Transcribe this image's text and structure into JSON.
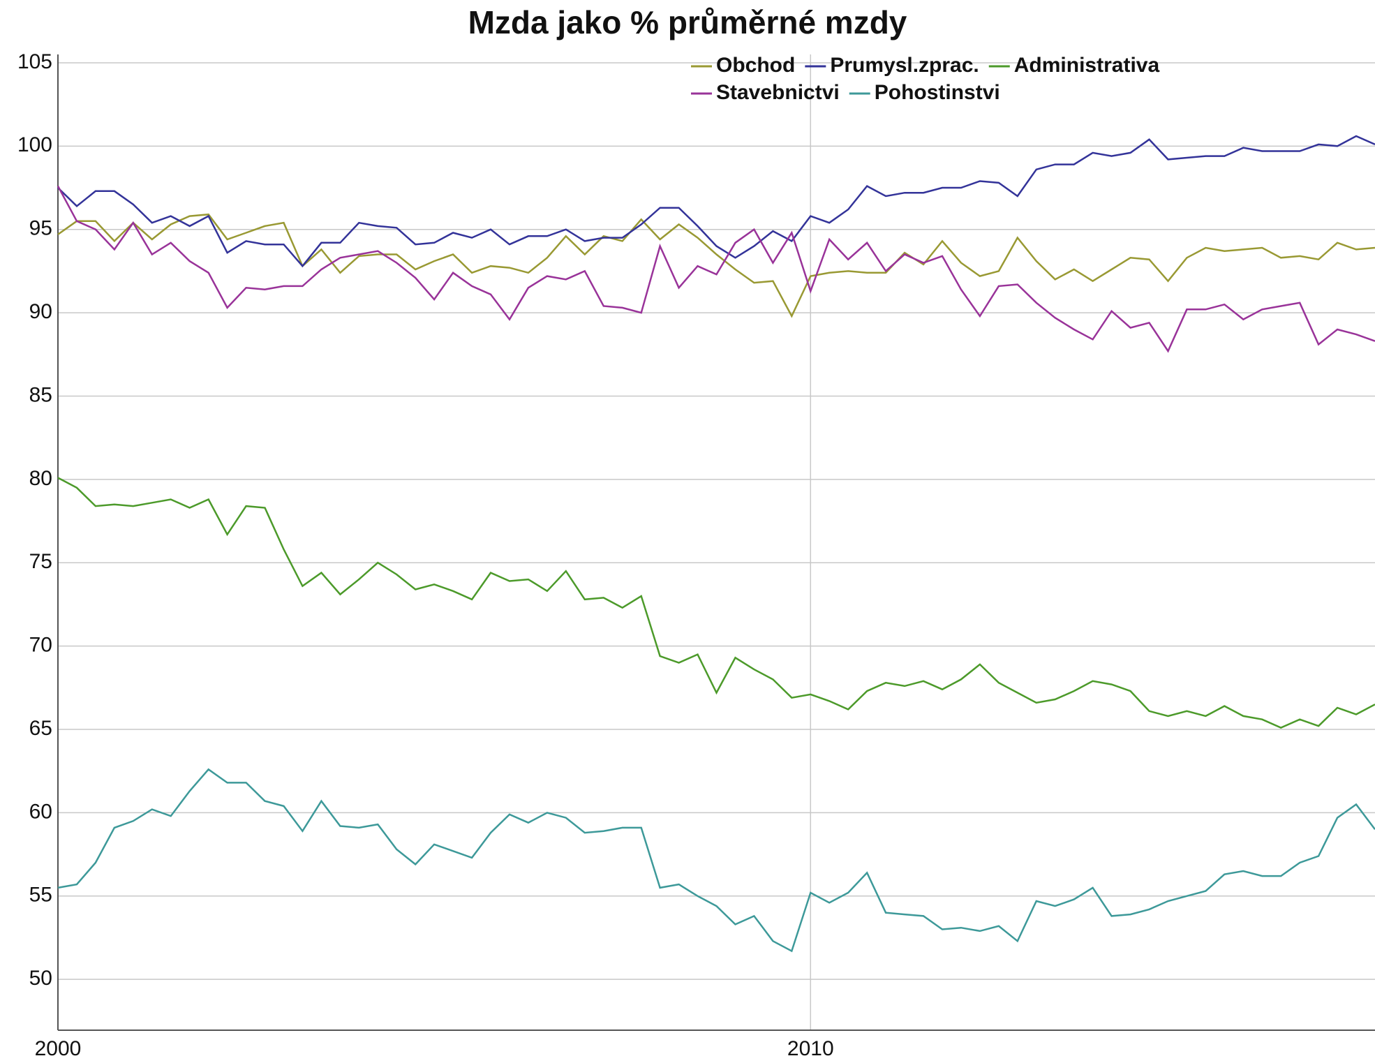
{
  "chart_data": {
    "type": "line",
    "title": "Mzda jako % průměrné mzdy",
    "x": [
      2000,
      2000.25,
      2000.5,
      2000.75,
      2001,
      2001.25,
      2001.5,
      2001.75,
      2002,
      2002.25,
      2002.5,
      2002.75,
      2003,
      2003.25,
      2003.5,
      2003.75,
      2004,
      2004.25,
      2004.5,
      2004.75,
      2005,
      2005.25,
      2005.5,
      2005.75,
      2006,
      2006.25,
      2006.5,
      2006.75,
      2007,
      2007.25,
      2007.5,
      2007.75,
      2008,
      2008.25,
      2008.5,
      2008.75,
      2009,
      2009.25,
      2009.5,
      2009.75,
      2010,
      2010.25,
      2010.5,
      2010.75,
      2011,
      2011.25,
      2011.5,
      2011.75,
      2012,
      2012.25,
      2012.5,
      2012.75,
      2013,
      2013.25,
      2013.5,
      2013.75,
      2014,
      2014.25,
      2014.5,
      2014.75,
      2015,
      2015.25,
      2015.5,
      2015.75,
      2016,
      2016.25,
      2016.5,
      2016.75,
      2017,
      2017.25,
      2017.5
    ],
    "series": [
      {
        "name": "Obchod",
        "color": "#999933",
        "values": [
          94.7,
          95.5,
          95.5,
          94.3,
          95.4,
          94.4,
          95.3,
          95.8,
          95.9,
          94.4,
          94.8,
          95.2,
          95.4,
          92.8,
          93.8,
          92.4,
          93.4,
          93.5,
          93.5,
          92.6,
          93.1,
          93.5,
          92.4,
          92.8,
          92.7,
          92.4,
          93.3,
          94.6,
          93.5,
          94.6,
          94.3,
          95.6,
          94.4,
          95.3,
          94.5,
          93.5,
          92.6,
          91.8,
          91.9,
          89.8,
          92.2,
          92.4,
          92.5,
          92.4,
          92.4,
          93.6,
          92.9,
          94.3,
          93.0,
          92.2,
          92.5,
          94.5,
          93.1,
          92.0,
          92.6,
          91.9,
          92.6,
          93.3,
          93.2,
          91.9,
          93.3,
          93.9,
          93.7,
          93.8,
          93.9,
          93.3,
          93.4,
          93.2,
          94.2,
          93.8,
          93.9
        ]
      },
      {
        "name": "Prumysl.zprac.",
        "color": "#333399",
        "values": [
          97.5,
          96.4,
          97.3,
          97.3,
          96.5,
          95.4,
          95.8,
          95.2,
          95.8,
          93.6,
          94.3,
          94.1,
          94.1,
          92.8,
          94.2,
          94.2,
          95.4,
          95.2,
          95.1,
          94.1,
          94.2,
          94.8,
          94.5,
          95.0,
          94.1,
          94.6,
          94.6,
          95.0,
          94.3,
          94.5,
          94.5,
          95.3,
          96.3,
          96.3,
          95.2,
          94.0,
          93.3,
          94.0,
          94.9,
          94.3,
          95.8,
          95.4,
          96.2,
          97.6,
          97.0,
          97.2,
          97.2,
          97.5,
          97.5,
          97.9,
          97.8,
          97.0,
          98.6,
          98.9,
          98.9,
          99.6,
          99.4,
          99.6,
          100.4,
          99.2,
          99.3,
          99.4,
          99.4,
          99.9,
          99.7,
          99.7,
          99.7,
          100.1,
          100.0,
          100.6,
          100.1
        ]
      },
      {
        "name": "Administrativa",
        "color": "#4c9a2a",
        "values": [
          80.1,
          79.5,
          78.4,
          78.5,
          78.4,
          78.6,
          78.8,
          78.3,
          78.8,
          76.7,
          78.4,
          78.3,
          75.8,
          73.6,
          74.4,
          73.1,
          74.0,
          75.0,
          74.3,
          73.4,
          73.7,
          73.3,
          72.8,
          74.4,
          73.9,
          74.0,
          73.3,
          74.5,
          72.8,
          72.9,
          72.3,
          73.0,
          69.4,
          69.0,
          69.5,
          67.2,
          69.3,
          68.6,
          68.0,
          66.9,
          67.1,
          66.7,
          66.2,
          67.3,
          67.8,
          67.6,
          67.9,
          67.4,
          68.0,
          68.9,
          67.8,
          67.2,
          66.6,
          66.8,
          67.3,
          67.9,
          67.7,
          67.3,
          66.1,
          65.8,
          66.1,
          65.8,
          66.4,
          65.8,
          65.6,
          65.1,
          65.6,
          65.2,
          66.3,
          65.9,
          66.5
        ]
      },
      {
        "name": "Stavebnictvi",
        "color": "#993399",
        "values": [
          97.6,
          95.5,
          95.0,
          93.8,
          95.4,
          93.5,
          94.2,
          93.1,
          92.4,
          90.3,
          91.5,
          91.4,
          91.6,
          91.6,
          92.6,
          93.3,
          93.5,
          93.7,
          93.0,
          92.1,
          90.8,
          92.4,
          91.6,
          91.1,
          89.6,
          91.5,
          92.2,
          92.0,
          92.5,
          90.4,
          90.3,
          90.0,
          94.0,
          91.5,
          92.8,
          92.3,
          94.2,
          95.0,
          93.0,
          94.8,
          91.3,
          94.4,
          93.2,
          94.2,
          92.5,
          93.5,
          93.0,
          93.4,
          91.4,
          89.8,
          91.6,
          91.7,
          90.6,
          89.7,
          89.0,
          88.4,
          90.1,
          89.1,
          89.4,
          87.7,
          90.2,
          90.2,
          90.5,
          89.6,
          90.2,
          90.4,
          90.6,
          88.1,
          89.0,
          88.7,
          88.3
        ]
      },
      {
        "name": "Pohostinstvi",
        "color": "#3d9999",
        "values": [
          55.5,
          55.7,
          57.0,
          59.1,
          59.5,
          60.2,
          59.8,
          61.3,
          62.6,
          61.8,
          61.8,
          60.7,
          60.4,
          58.9,
          60.7,
          59.2,
          59.1,
          59.3,
          57.8,
          56.9,
          58.1,
          57.7,
          57.3,
          58.8,
          59.9,
          59.4,
          60.0,
          59.7,
          58.8,
          58.9,
          59.1,
          59.1,
          55.5,
          55.7,
          55.0,
          54.4,
          53.3,
          53.8,
          52.3,
          51.7,
          55.2,
          54.6,
          55.2,
          56.4,
          54.0,
          53.9,
          53.8,
          53.0,
          53.1,
          52.9,
          53.2,
          52.3,
          54.7,
          54.4,
          54.8,
          55.5,
          53.8,
          53.9,
          54.2,
          54.7,
          55.0,
          55.3,
          56.3,
          56.5,
          56.2,
          56.2,
          57.0,
          57.4,
          59.7,
          60.5,
          59.0
        ]
      }
    ],
    "xlim": [
      2000,
      2017.5
    ],
    "xticks": [
      2000,
      2010
    ],
    "ylim": [
      46.95,
      105.5
    ],
    "yticks": [
      50,
      55,
      60,
      65,
      70,
      75,
      80,
      85,
      90,
      95,
      100,
      105
    ],
    "grid": true,
    "legend": "top-right"
  }
}
